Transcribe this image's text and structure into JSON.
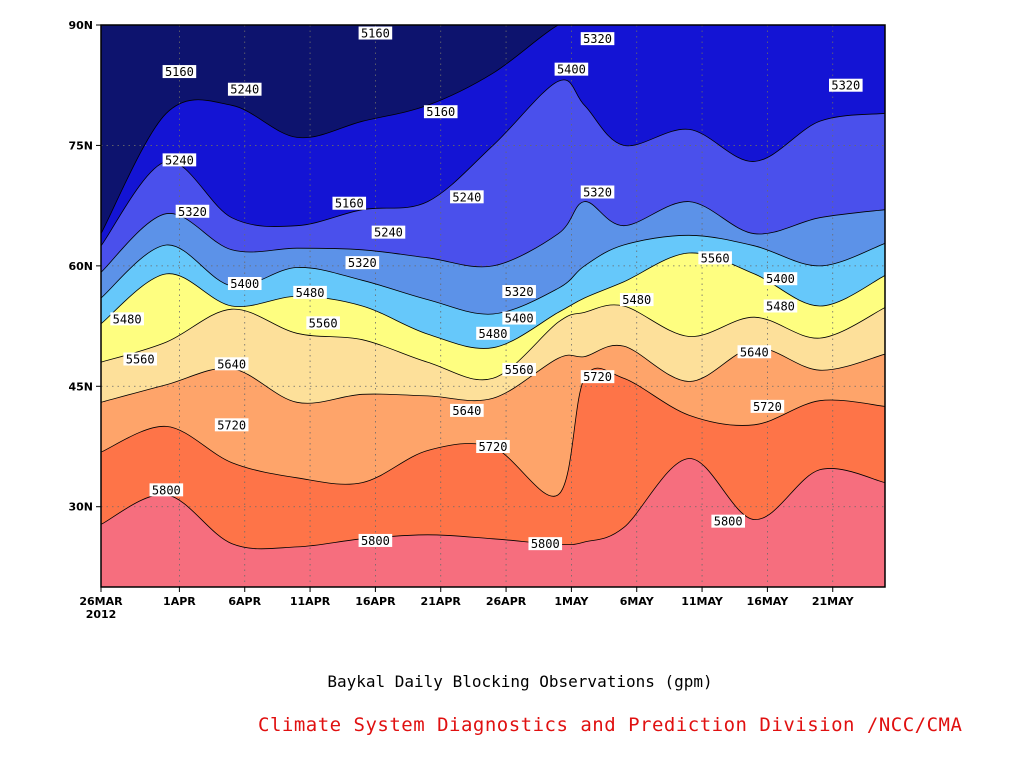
{
  "chart_data": {
    "type": "heatmap",
    "title": "Baykal Daily Blocking Observations (gpm)",
    "credit": "Climate System Diagnostics and Prediction Division /NCC/CMA",
    "x_ticks": [
      {
        "label": "26MAR",
        "sub": "2012",
        "date": "2012-03-26"
      },
      {
        "label": "1APR",
        "date": "2012-04-01"
      },
      {
        "label": "6APR",
        "date": "2012-04-06"
      },
      {
        "label": "11APR",
        "date": "2012-04-11"
      },
      {
        "label": "16APR",
        "date": "2012-04-16"
      },
      {
        "label": "21APR",
        "date": "2012-04-21"
      },
      {
        "label": "26APR",
        "date": "2012-04-26"
      },
      {
        "label": "1MAY",
        "date": "2012-05-01"
      },
      {
        "label": "6MAY",
        "date": "2012-05-06"
      },
      {
        "label": "11MAY",
        "date": "2012-05-11"
      },
      {
        "label": "16MAY",
        "date": "2012-05-16"
      },
      {
        "label": "21MAY",
        "date": "2012-05-21"
      }
    ],
    "xlim": [
      "2012-03-26",
      "2012-05-25"
    ],
    "y_ticks": [
      {
        "label": "30N",
        "value": 30
      },
      {
        "label": "45N",
        "value": 45
      },
      {
        "label": "60N",
        "value": 60
      },
      {
        "label": "75N",
        "value": 75
      },
      {
        "label": "90N",
        "value": 90
      }
    ],
    "ylim": [
      20,
      90
    ],
    "grid": true,
    "contour_levels": [
      5160,
      5240,
      5320,
      5400,
      5480,
      5560,
      5640,
      5720,
      5800
    ],
    "fill_colors": [
      "#0d136e",
      "#1414d4",
      "#4a50ec",
      "#5c92e8",
      "#66c8fa",
      "#fefe80",
      "#fde09a",
      "#fea46a",
      "#fe7448",
      "#f66e7e"
    ],
    "contour_dates": [
      "2012-03-26",
      "2012-03-31",
      "2012-04-05",
      "2012-04-10",
      "2012-04-15",
      "2012-04-20",
      "2012-04-25",
      "2012-04-30",
      "2012-05-02",
      "2012-05-05",
      "2012-05-10",
      "2012-05-15",
      "2012-05-20",
      "2012-05-25"
    ],
    "contours": [
      {
        "level": 5800,
        "lats": [
          27.8,
          31.5,
          25.4,
          25.0,
          26.0,
          26.5,
          26.0,
          25.3,
          25.6,
          27.4,
          36.0,
          28.4,
          34.6,
          33.0
        ]
      },
      {
        "level": 5720,
        "lats": [
          36.8,
          40.0,
          35.5,
          33.6,
          33.0,
          37.0,
          37.4,
          31.5,
          46.0,
          46.0,
          41.4,
          40.2,
          43.2,
          42.5
        ]
      },
      {
        "level": 5640,
        "lats": [
          43.0,
          45.2,
          47.2,
          43.0,
          44.0,
          43.8,
          43.5,
          48.5,
          48.7,
          50.0,
          45.6,
          49.8,
          47.0,
          49.0
        ]
      },
      {
        "level": 5560,
        "lats": [
          48.0,
          50.5,
          54.6,
          51.6,
          50.8,
          48.0,
          46.0,
          53.0,
          54.2,
          55.0,
          51.2,
          53.6,
          51.0,
          54.8
        ]
      },
      {
        "level": 5480,
        "lats": [
          52.8,
          59.0,
          55.0,
          56.2,
          55.0,
          51.5,
          49.8,
          54.2,
          56.0,
          58.0,
          61.6,
          59.0,
          55.0,
          58.8
        ]
      },
      {
        "level": 5400,
        "lats": [
          56.0,
          62.6,
          57.5,
          59.8,
          58.2,
          55.8,
          54.0,
          57.2,
          60.0,
          62.6,
          63.8,
          62.5,
          60.0,
          62.8
        ]
      },
      {
        "level": 5320,
        "lats": [
          59.2,
          66.5,
          62.0,
          62.2,
          62.0,
          61.0,
          60.0,
          64.0,
          68.0,
          65.0,
          68.0,
          64.0,
          66.0,
          67.0
        ]
      },
      {
        "level": 5240,
        "lats": [
          62.5,
          73.0,
          66.0,
          65.0,
          67.0,
          68.0,
          75.0,
          83.0,
          80.0,
          75.0,
          77.0,
          73.0,
          78.0,
          79.0
        ]
      },
      {
        "level": 5160,
        "lats": [
          64.0,
          79.0,
          80.0,
          76.0,
          78.0,
          80.0,
          84.0,
          90.0,
          90.0,
          90.0,
          90.0,
          90.0,
          90.0,
          90.0
        ]
      }
    ],
    "contour_labels": [
      {
        "text": "5160",
        "date": "2012-04-01",
        "lat": 84.2
      },
      {
        "text": "5160",
        "date": "2012-04-16",
        "lat": 89.0
      },
      {
        "text": "5160",
        "date": "2012-04-21",
        "lat": 79.2
      },
      {
        "text": "5160",
        "date": "2012-04-14",
        "lat": 67.8
      },
      {
        "text": "5240",
        "date": "2012-04-06",
        "lat": 82.0
      },
      {
        "text": "5240",
        "date": "2012-04-01",
        "lat": 73.2
      },
      {
        "text": "5240",
        "date": "2012-04-23",
        "lat": 68.6
      },
      {
        "text": "5240",
        "date": "2012-04-17",
        "lat": 64.2
      },
      {
        "text": "5320",
        "date": "2012-04-02",
        "lat": 66.8
      },
      {
        "text": "5320",
        "date": "2012-05-03",
        "lat": 88.3
      },
      {
        "text": "5320",
        "date": "2012-05-03",
        "lat": 69.2
      },
      {
        "text": "5320",
        "date": "2012-04-15",
        "lat": 60.4
      },
      {
        "text": "5320",
        "date": "2012-04-27",
        "lat": 56.8
      },
      {
        "text": "5320",
        "date": "2012-05-22",
        "lat": 82.5
      },
      {
        "text": "5400",
        "date": "2012-05-01",
        "lat": 84.5
      },
      {
        "text": "5400",
        "date": "2012-04-06",
        "lat": 57.8
      },
      {
        "text": "5400",
        "date": "2012-04-27",
        "lat": 53.5
      },
      {
        "text": "5400",
        "date": "2012-05-17",
        "lat": 58.4
      },
      {
        "text": "5480",
        "date": "2012-03-28",
        "lat": 53.4
      },
      {
        "text": "5480",
        "date": "2012-04-11",
        "lat": 56.7
      },
      {
        "text": "5480",
        "date": "2012-04-25",
        "lat": 51.6
      },
      {
        "text": "5480",
        "date": "2012-05-06",
        "lat": 55.8
      },
      {
        "text": "5480",
        "date": "2012-05-17",
        "lat": 55.0
      },
      {
        "text": "5560",
        "date": "2012-03-29",
        "lat": 48.4
      },
      {
        "text": "5560",
        "date": "2012-04-12",
        "lat": 52.9
      },
      {
        "text": "5560",
        "date": "2012-04-27",
        "lat": 47.1
      },
      {
        "text": "5560",
        "date": "2012-05-12",
        "lat": 61.0
      },
      {
        "text": "5640",
        "date": "2012-04-05",
        "lat": 47.8
      },
      {
        "text": "5640",
        "date": "2012-04-23",
        "lat": 42.0
      },
      {
        "text": "5640",
        "date": "2012-05-15",
        "lat": 49.3
      },
      {
        "text": "5720",
        "date": "2012-04-05",
        "lat": 40.2
      },
      {
        "text": "5720",
        "date": "2012-04-25",
        "lat": 37.5
      },
      {
        "text": "5720",
        "date": "2012-05-03",
        "lat": 46.2
      },
      {
        "text": "5720",
        "date": "2012-05-16",
        "lat": 42.5
      },
      {
        "text": "5800",
        "date": "2012-03-31",
        "lat": 32.1
      },
      {
        "text": "5800",
        "date": "2012-04-16",
        "lat": 25.8
      },
      {
        "text": "5800",
        "date": "2012-04-29",
        "lat": 25.4
      },
      {
        "text": "5800",
        "date": "2012-05-13",
        "lat": 28.2
      }
    ]
  }
}
